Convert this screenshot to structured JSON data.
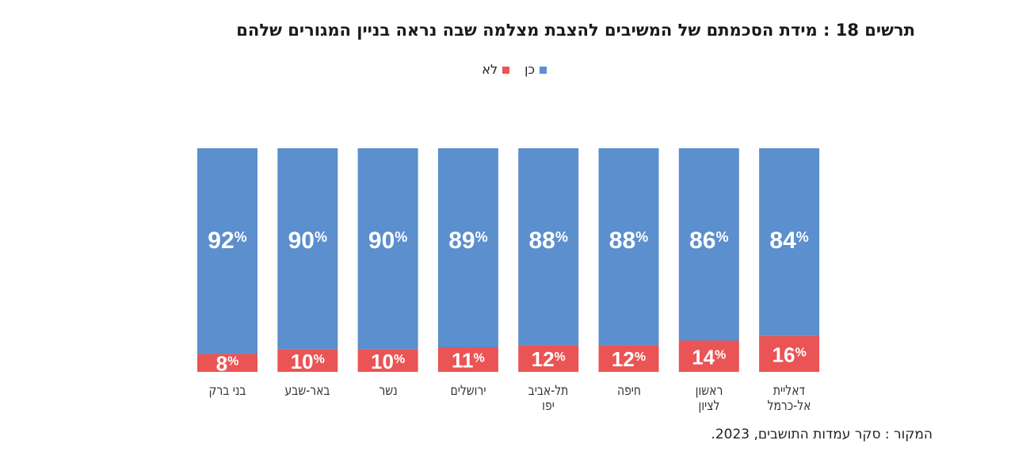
{
  "title": "תרשים 18 : מידת הסכמתם של המשיבים להצבת מצלמה שבה נראה בניין המגורים שלהם",
  "source": "המקור : סקר עמדות התושבים, 2023.",
  "colors": {
    "yes": "#5b8fcd",
    "no": "#ea5455"
  },
  "legend": [
    {
      "name": "כן",
      "color": "#5b8fcd"
    },
    {
      "name": "לא",
      "color": "#ea5455"
    }
  ],
  "chart_data": {
    "type": "bar",
    "stacked": true,
    "percent_stacked": true,
    "title": "תרשים 18 : מידת הסכמתם של המשיבים להצבת מצלמה שבה נראה בניין המגורים שלהם",
    "xlabel": "",
    "ylabel": "",
    "ylim": [
      0,
      100
    ],
    "grid": false,
    "legend_position": "top-center",
    "categories": [
      "בני ברק",
      "באר-שבע",
      "נשר",
      "ירושלים",
      "תל-אביב יפו",
      "חיפה",
      "ראשון לציון",
      "דאליית אל-כרמל"
    ],
    "category_lines": [
      [
        "בני ברק"
      ],
      [
        "באר-שבע"
      ],
      [
        "נשר"
      ],
      [
        "ירושלים"
      ],
      [
        "תל-אביב",
        "יפו"
      ],
      [
        "חיפה"
      ],
      [
        "ראשון",
        "לציון"
      ],
      [
        "דאליית",
        "אל-כרמל"
      ]
    ],
    "series": [
      {
        "name": "כן",
        "values": [
          92,
          90,
          90,
          89,
          88,
          88,
          86,
          84
        ]
      },
      {
        "name": "לא",
        "values": [
          8,
          10,
          10,
          11,
          12,
          12,
          14,
          16
        ]
      }
    ],
    "value_suffix": "%"
  }
}
